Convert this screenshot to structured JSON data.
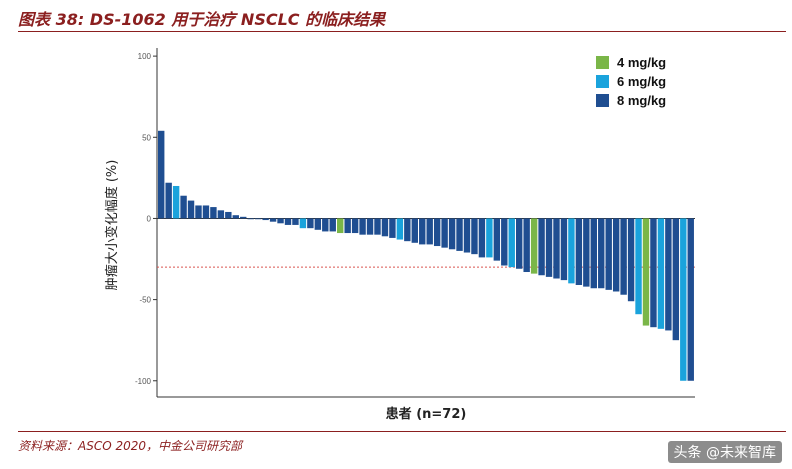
{
  "header": {
    "title": "图表 38: DS-1062 用于治疗 NSCLC 的临床结果"
  },
  "footer": {
    "source": "资料来源：ASCO 2020，中金公司研究部",
    "watermark": "头条 @未来智库"
  },
  "colors": {
    "4 mg/kg": "#7ab648",
    "6 mg/kg": "#1aa3dc",
    "8 mg/kg": "#1f4e91",
    "reference": "#d9534f",
    "title": "#8b1f1f"
  },
  "chart_data": {
    "type": "bar",
    "title": "",
    "xlabel": "患者 (n=72)",
    "ylabel": "肿瘤大小变化幅度 (%)",
    "ylim": [
      -110,
      105
    ],
    "yticks": [
      100,
      50,
      0,
      -50,
      -100
    ],
    "ytick_labels": [
      "100",
      "50",
      "0",
      "-50",
      "-100"
    ],
    "grid": false,
    "legend_position": "top-right",
    "reference_line": -30,
    "legend": [
      {
        "name": "4 mg/kg",
        "color_key": "4 mg/kg"
      },
      {
        "name": "6 mg/kg",
        "color_key": "6 mg/kg"
      },
      {
        "name": "8 mg/kg",
        "color_key": "8 mg/kg"
      }
    ],
    "values": [
      54,
      22,
      20,
      14,
      11,
      8,
      8,
      7,
      5,
      4,
      2,
      1,
      0,
      0,
      -1,
      -2,
      -3,
      -4,
      -4,
      -6,
      -6,
      -7,
      -8,
      -8,
      -9,
      -9,
      -9,
      -10,
      -10,
      -10,
      -11,
      -12,
      -13,
      -14,
      -15,
      -16,
      -16,
      -17,
      -18,
      -19,
      -20,
      -21,
      -22,
      -24,
      -24,
      -26,
      -29,
      -30,
      -31,
      -33,
      -34,
      -35,
      -36,
      -37,
      -38,
      -40,
      -41,
      -42,
      -43,
      -43,
      -44,
      -45,
      -47,
      -51,
      -59,
      -66,
      -67,
      -68,
      -69,
      -75,
      -100,
      -100
    ],
    "dose_groups": [
      "8 mg/kg",
      "8 mg/kg",
      "6 mg/kg",
      "8 mg/kg",
      "8 mg/kg",
      "8 mg/kg",
      "8 mg/kg",
      "8 mg/kg",
      "8 mg/kg",
      "8 mg/kg",
      "8 mg/kg",
      "8 mg/kg",
      "8 mg/kg",
      "8 mg/kg",
      "8 mg/kg",
      "8 mg/kg",
      "8 mg/kg",
      "8 mg/kg",
      "8 mg/kg",
      "6 mg/kg",
      "8 mg/kg",
      "8 mg/kg",
      "8 mg/kg",
      "8 mg/kg",
      "4 mg/kg",
      "8 mg/kg",
      "8 mg/kg",
      "8 mg/kg",
      "8 mg/kg",
      "8 mg/kg",
      "8 mg/kg",
      "8 mg/kg",
      "6 mg/kg",
      "8 mg/kg",
      "8 mg/kg",
      "8 mg/kg",
      "8 mg/kg",
      "8 mg/kg",
      "8 mg/kg",
      "8 mg/kg",
      "8 mg/kg",
      "8 mg/kg",
      "8 mg/kg",
      "8 mg/kg",
      "6 mg/kg",
      "8 mg/kg",
      "8 mg/kg",
      "6 mg/kg",
      "8 mg/kg",
      "8 mg/kg",
      "4 mg/kg",
      "8 mg/kg",
      "8 mg/kg",
      "8 mg/kg",
      "8 mg/kg",
      "6 mg/kg",
      "8 mg/kg",
      "8 mg/kg",
      "8 mg/kg",
      "8 mg/kg",
      "8 mg/kg",
      "8 mg/kg",
      "8 mg/kg",
      "8 mg/kg",
      "6 mg/kg",
      "4 mg/kg",
      "8 mg/kg",
      "6 mg/kg",
      "8 mg/kg",
      "8 mg/kg",
      "6 mg/kg",
      "8 mg/kg"
    ]
  }
}
